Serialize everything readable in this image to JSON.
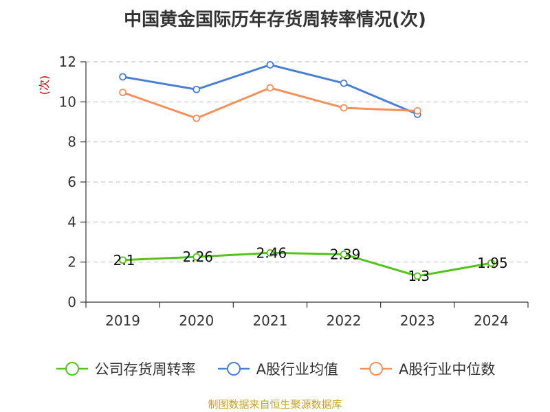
{
  "chart_data": {
    "type": "line",
    "title": "中国黄金国际历年存货周转率情况(次)",
    "ylabel": "(次)",
    "xlabel": "",
    "categories": [
      "2019",
      "2020",
      "2021",
      "2022",
      "2023",
      "2024"
    ],
    "ylim": [
      0,
      12
    ],
    "yticks": [
      "0",
      "2",
      "4",
      "6",
      "8",
      "10",
      "12"
    ],
    "grid": true,
    "legend_position": "bottom",
    "series": [
      {
        "name": "公司存货周转率",
        "color": "#52c41a",
        "values": [
          2.1,
          2.26,
          2.46,
          2.39,
          1.3,
          1.95
        ],
        "labels": [
          "2.1",
          "2.26",
          "2.46",
          "2.39",
          "1.3",
          "1.95"
        ]
      },
      {
        "name": "A股行业均值",
        "color": "#4a7fd6",
        "values": [
          11.25,
          10.62,
          11.85,
          10.93,
          9.38,
          null
        ]
      },
      {
        "name": "A股行业中位数",
        "color": "#f5905a",
        "values": [
          10.47,
          9.18,
          10.7,
          9.7,
          9.55,
          null
        ]
      }
    ]
  },
  "source": "制图数据来自恒生聚源数据库"
}
